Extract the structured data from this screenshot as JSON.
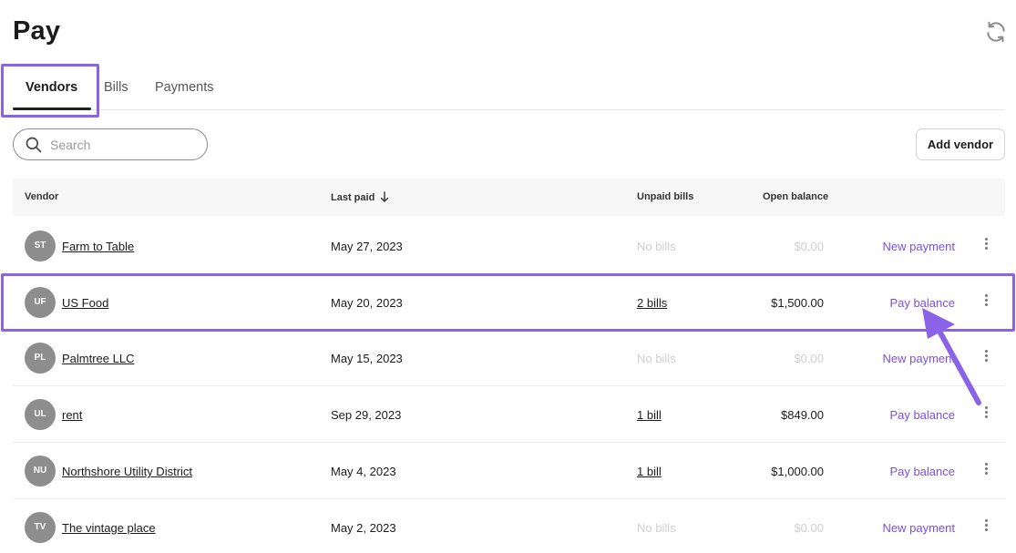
{
  "header": {
    "title": "Pay"
  },
  "tabs": [
    {
      "label": "Vendors",
      "active": true
    },
    {
      "label": "Bills",
      "active": false
    },
    {
      "label": "Payments",
      "active": false
    }
  ],
  "search": {
    "placeholder": "Search",
    "value": ""
  },
  "toolbar": {
    "add_vendor_label": "Add vendor"
  },
  "table": {
    "columns": {
      "vendor": "Vendor",
      "last_paid": "Last paid",
      "unpaid_bills": "Unpaid bills",
      "open_balance": "Open balance"
    },
    "rows": [
      {
        "initials": "ST",
        "vendor": "Farm to Table",
        "last_paid": "May 27, 2023",
        "unpaid_bills": "No bills",
        "open_balance": "$0.00",
        "action": "New payment"
      },
      {
        "initials": "UF",
        "vendor": "US Food",
        "last_paid": "May 20, 2023",
        "unpaid_bills": "2 bills",
        "open_balance": "$1,500.00",
        "action": "Pay balance"
      },
      {
        "initials": "PL",
        "vendor": "Palmtree LLC",
        "last_paid": "May 15, 2023",
        "unpaid_bills": "No bills",
        "open_balance": "$0.00",
        "action": "New payment"
      },
      {
        "initials": "UL",
        "vendor": "rent",
        "last_paid": "Sep 29, 2023",
        "unpaid_bills": "1 bill",
        "open_balance": "$849.00",
        "action": "Pay balance"
      },
      {
        "initials": "NU",
        "vendor": "Northshore Utility District",
        "last_paid": "May 4, 2023",
        "unpaid_bills": "1 bill",
        "open_balance": "$1,000.00",
        "action": "Pay balance"
      },
      {
        "initials": "TV",
        "vendor": "The vintage place",
        "last_paid": "May 2, 2023",
        "unpaid_bills": "No bills",
        "open_balance": "$0.00",
        "action": "New payment"
      }
    ]
  },
  "colors": {
    "accent": "#7b4fe0",
    "highlight": "#8a63e8",
    "avatar": "#8d8d8d",
    "muted": "#cfcfcf"
  },
  "icons": {
    "refresh": "refresh-icon",
    "search": "search-icon",
    "sort": "arrow-down-icon",
    "more": "kebab-icon"
  }
}
